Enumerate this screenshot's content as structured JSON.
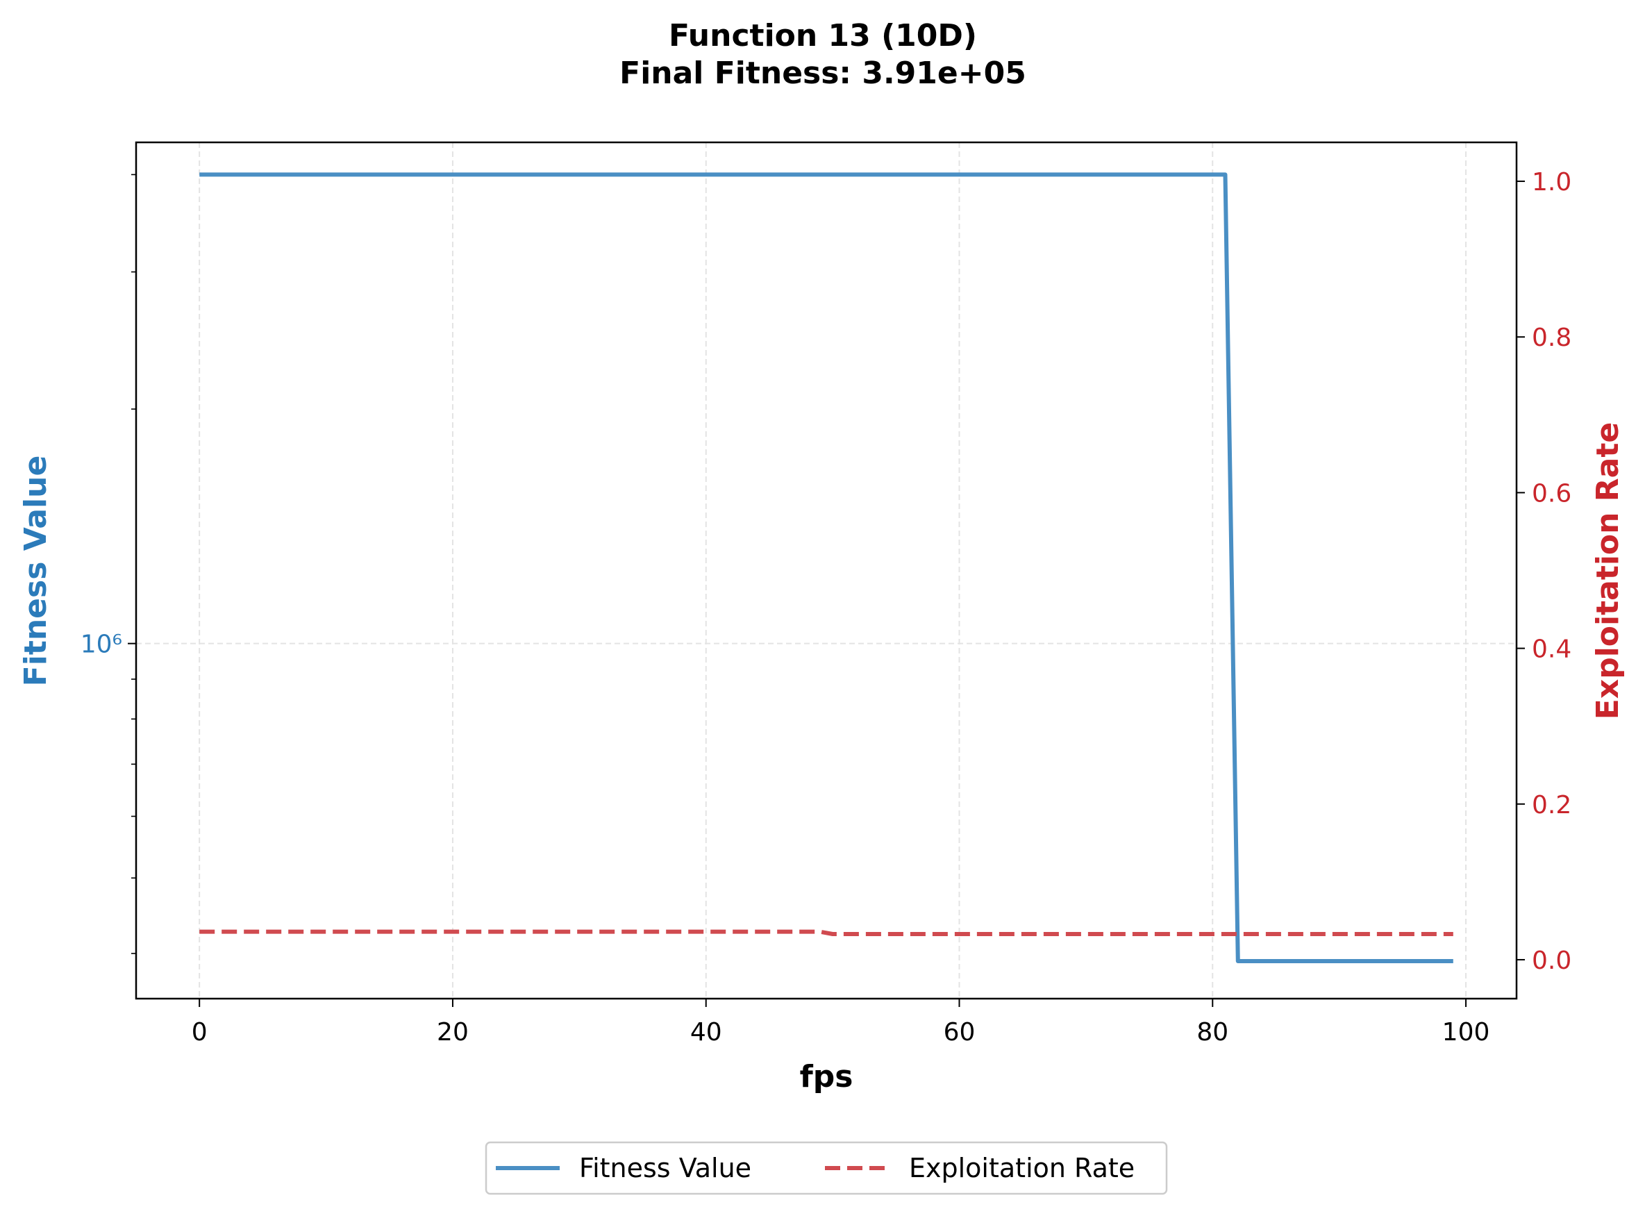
{
  "chart_data": {
    "type": "line",
    "title": "Function 13 (10D)",
    "subtitle": "Final Fitness: 3.91e+05",
    "xlabel": "fps",
    "ylabel_left": "Fitness Value",
    "ylabel_right": "Exploitation Rate",
    "xlim": [
      -5,
      104
    ],
    "x_ticks": [
      0,
      20,
      40,
      60,
      80,
      100
    ],
    "left_axis": {
      "scale": "log",
      "ylim": [
        350000,
        4400000
      ],
      "major_ticks": [
        1000000
      ],
      "major_tick_labels": [
        "10⁶"
      ],
      "minor_ticks": [
        400000,
        500000,
        600000,
        700000,
        800000,
        900000,
        2000000,
        3000000,
        4000000
      ]
    },
    "right_axis": {
      "scale": "linear",
      "ylim": [
        -0.05,
        1.05
      ],
      "ticks": [
        0.0,
        0.2,
        0.4,
        0.6,
        0.8,
        1.0
      ],
      "tick_labels": [
        "0.0",
        "0.2",
        "0.4",
        "0.6",
        "0.8",
        "1.0"
      ]
    },
    "grid": true,
    "legend_position": "bottom-center",
    "series": [
      {
        "name": "Fitness Value",
        "axis": "left",
        "style": "solid",
        "color": "#4a8fc4",
        "x": [
          0,
          81,
          82,
          99
        ],
        "y": [
          4000000,
          4000000,
          391000,
          391000
        ]
      },
      {
        "name": "Exploitation Rate",
        "axis": "right",
        "style": "dashed",
        "color": "#d04a4f",
        "x": [
          0,
          49,
          50,
          99
        ],
        "y": [
          0.036,
          0.036,
          0.033,
          0.033
        ]
      }
    ]
  }
}
